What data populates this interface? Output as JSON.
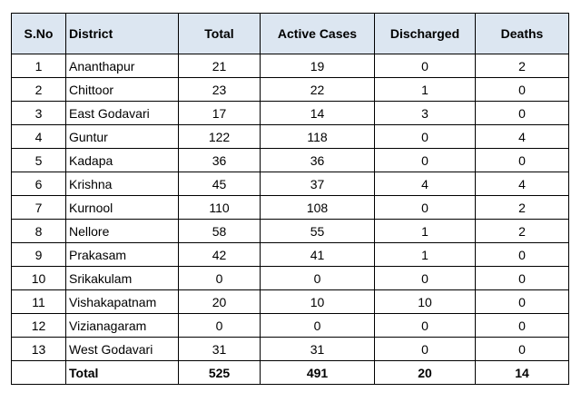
{
  "table": {
    "columns": [
      "S.No",
      "District",
      "Total",
      "Active Cases",
      "Discharged",
      "Deaths"
    ],
    "rows": [
      [
        1,
        "Ananthapur",
        21,
        19,
        0,
        2
      ],
      [
        2,
        "Chittoor",
        23,
        22,
        1,
        0
      ],
      [
        3,
        "East Godavari",
        17,
        14,
        3,
        0
      ],
      [
        4,
        "Guntur",
        122,
        118,
        0,
        4
      ],
      [
        5,
        "Kadapa",
        36,
        36,
        0,
        0
      ],
      [
        6,
        "Krishna",
        45,
        37,
        4,
        4
      ],
      [
        7,
        "Kurnool",
        110,
        108,
        0,
        2
      ],
      [
        8,
        "Nellore",
        58,
        55,
        1,
        2
      ],
      [
        9,
        "Prakasam",
        42,
        41,
        1,
        0
      ],
      [
        10,
        "Srikakulam",
        0,
        0,
        0,
        0
      ],
      [
        11,
        "Vishakapatnam",
        20,
        10,
        10,
        0
      ],
      [
        12,
        "Vizianagaram",
        0,
        0,
        0,
        0
      ],
      [
        13,
        "West Godavari",
        31,
        31,
        0,
        0
      ]
    ],
    "total": {
      "label": "Total",
      "values": [
        525,
        491,
        20,
        14
      ]
    }
  }
}
